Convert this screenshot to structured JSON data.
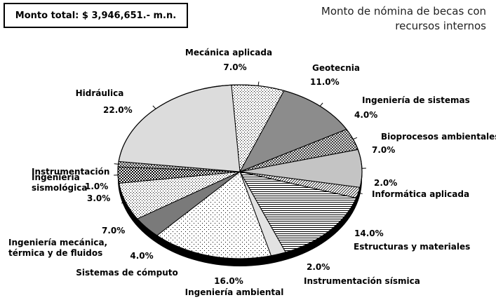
{
  "header": {
    "total_label": "Monto total: $ 3,946,651.- m.n."
  },
  "chart_data": {
    "type": "pie",
    "title_lines": [
      "Monto de nómina de becas con",
      "recursos internos"
    ],
    "start_angle_deg": 94,
    "slices": [
      {
        "name": "Mecánica aplicada",
        "value": 7.0,
        "pct_label": "7.0%",
        "fill": "dots-fine",
        "color": "#ffffff"
      },
      {
        "name": "Geotecnia",
        "value": 11.0,
        "pct_label": "11.0%",
        "fill": "solid",
        "color": "#8c8c8c"
      },
      {
        "name": "Ingeniería de sistemas",
        "value": 4.0,
        "pct_label": "4.0%",
        "fill": "cross",
        "color": "#ffffff"
      },
      {
        "name": "Bioprocesos ambientales",
        "value": 7.0,
        "pct_label": "7.0%",
        "fill": "solid",
        "color": "#c4c4c4"
      },
      {
        "name": "Informática aplicada",
        "value": 2.0,
        "pct_label": "2.0%",
        "fill": "diag",
        "color": "#ffffff"
      },
      {
        "name": "Estructuras y materiales",
        "value": 14.0,
        "pct_label": "14.0%",
        "fill": "hlines",
        "color": "#ffffff"
      },
      {
        "name": "Instrumentación sísmica",
        "value": 2.0,
        "pct_label": "2.0%",
        "fill": "solid",
        "color": "#e2e2e2"
      },
      {
        "name": "Ingeniería ambiental",
        "value": 16.0,
        "pct_label": "16.0%",
        "fill": "dots-sparse",
        "color": "#ffffff"
      },
      {
        "name": "Sistemas de cómputo",
        "value": 4.0,
        "pct_label": "4.0%",
        "fill": "solid",
        "color": "#7a7a7a"
      },
      {
        "name": "Ingeniería mecánica, térmica y de fluidos",
        "value": 7.0,
        "pct_label": "7.0%",
        "fill": "dots-fine",
        "color": "#ffffff"
      },
      {
        "name": "Ingeniería sismológica",
        "value": 3.0,
        "pct_label": "3.0%",
        "fill": "checker",
        "color": "#ffffff"
      },
      {
        "name": "Instrumentación",
        "value": 1.0,
        "pct_label": "1.0%",
        "fill": "cross",
        "color": "#ffffff"
      },
      {
        "name": "Hidráulica",
        "value": 22.0,
        "pct_label": "22.0%",
        "fill": "solid",
        "color": "#dcdcdc"
      }
    ]
  }
}
